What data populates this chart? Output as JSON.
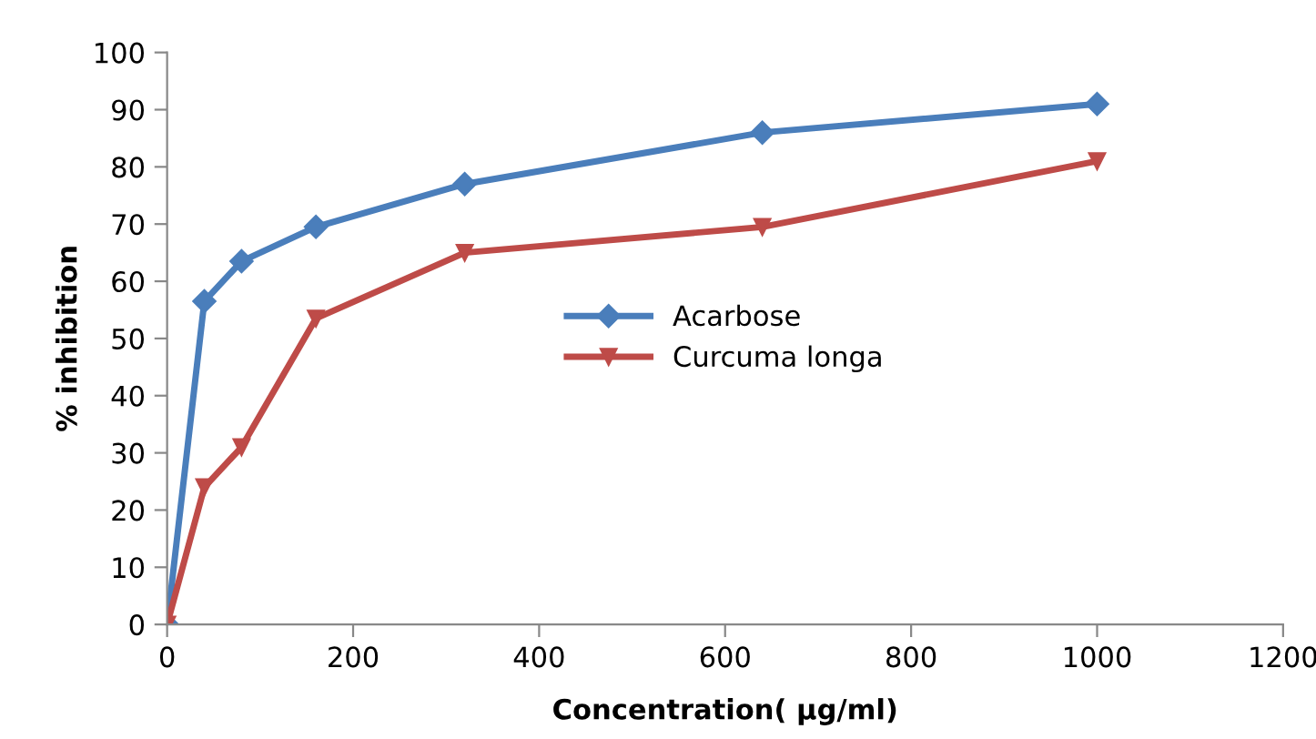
{
  "chart_data": {
    "type": "line",
    "xlabel": "Concentration( µg/ml)",
    "ylabel": "% inhibition",
    "x": [
      0,
      40,
      80,
      160,
      320,
      640,
      1000
    ],
    "series": [
      {
        "name": "Acarbose",
        "color": "#4a7ebb",
        "marker": "diamond",
        "values": [
          0,
          56.5,
          63.5,
          69.5,
          77,
          86,
          91
        ]
      },
      {
        "name": "Curcuma longa",
        "color": "#be4b48",
        "marker": "triangle",
        "values": [
          0,
          24,
          31,
          53.5,
          65,
          69.5,
          81
        ]
      }
    ],
    "xlim": [
      0,
      1200
    ],
    "xticks": [
      0,
      200,
      400,
      600,
      800,
      1000,
      1200
    ],
    "ylim": [
      0,
      100
    ],
    "yticks": [
      0,
      10,
      20,
      30,
      40,
      50,
      60,
      70,
      80,
      90,
      100
    ],
    "grid": false,
    "legend": "center",
    "line_style": "solid"
  }
}
